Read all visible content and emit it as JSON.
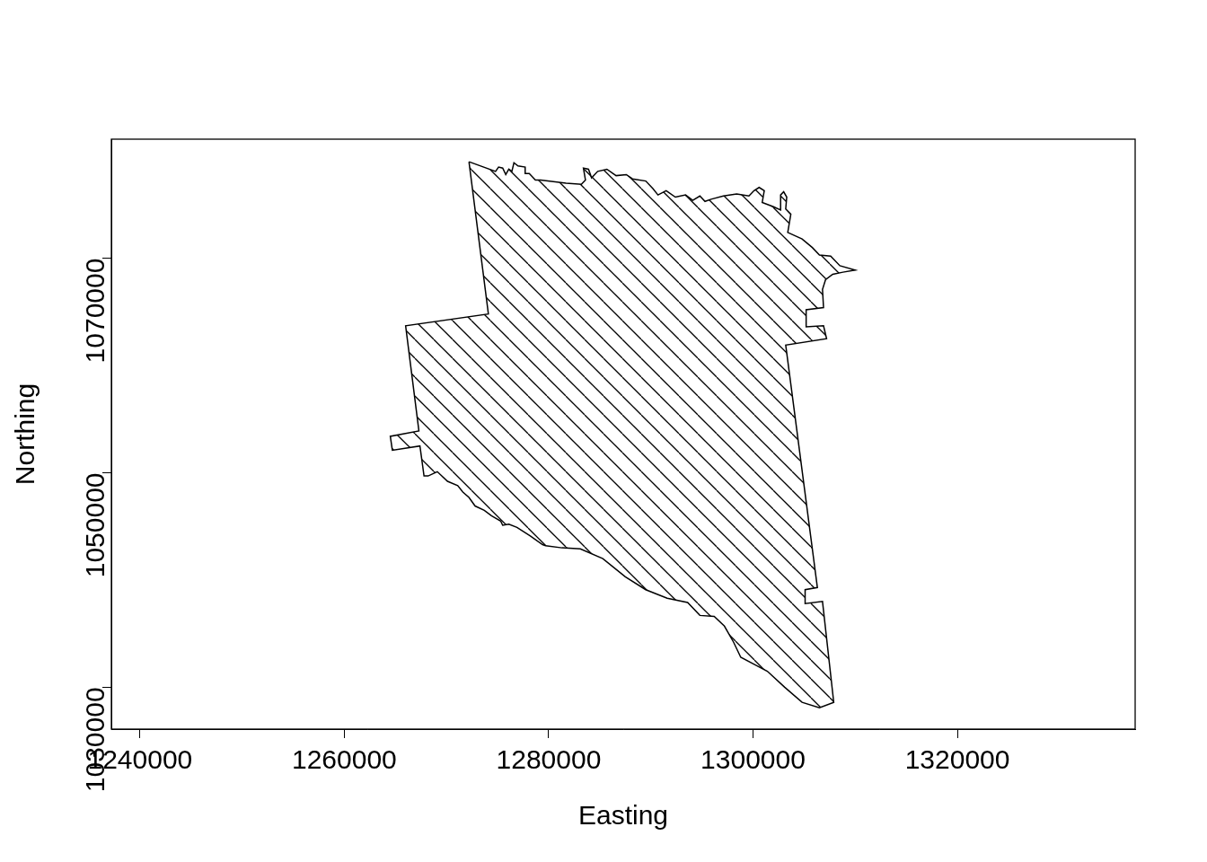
{
  "chart_data": {
    "type": "polygon",
    "x_label": "Easting",
    "y_label": "Northing",
    "color": "#000000",
    "grid": false,
    "xlim": [
      1237200,
      1337400
    ],
    "xticks": [
      1240000,
      1260000,
      1280000,
      1300000,
      1320000
    ],
    "ylim": [
      1026100,
      1081100
    ],
    "yticks": [
      1030000,
      1050000,
      1070000
    ],
    "x": [
      1272200,
      1274800,
      1275100,
      1275500,
      1275800,
      1276100,
      1276400,
      1276600,
      1277000,
      1277700,
      1277700,
      1278100,
      1278700,
      1279200,
      1281700,
      1283200,
      1283600,
      1283400,
      1283900,
      1284200,
      1284800,
      1285700,
      1286600,
      1287600,
      1288200,
      1289500,
      1290200,
      1290700,
      1291500,
      1292400,
      1293400,
      1294100,
      1294800,
      1295300,
      1295900,
      1297100,
      1298400,
      1299600,
      1300100,
      1300600,
      1301100,
      1300900,
      1302000,
      1302700,
      1302700,
      1303000,
      1303300,
      1303200,
      1303700,
      1303400,
      1304800,
      1305800,
      1306500,
      1307600,
      1308500,
      1310000,
      1308800,
      1307800,
      1307100,
      1306800,
      1306900,
      1305200,
      1305200,
      1306900,
      1307200,
      1303200,
      1306300,
      1305100,
      1305100,
      1306800,
      1307900,
      1306500,
      1304800,
      1303100,
      1301400,
      1300200,
      1298800,
      1298100,
      1297200,
      1296200,
      1294800,
      1293600,
      1291600,
      1289500,
      1287500,
      1285300,
      1283100,
      1281300,
      1279700,
      1279400,
      1278200,
      1276900,
      1276100,
      1275500,
      1275300,
      1274400,
      1273700,
      1272800,
      1272200,
      1271600,
      1271100,
      1270100,
      1269100,
      1268200,
      1267800,
      1267400,
      1264700,
      1264500,
      1267300,
      1266000,
      1274100,
      1272200
    ],
    "values": [
      1079000,
      1078100,
      1078500,
      1078400,
      1077800,
      1078300,
      1078100,
      1078900,
      1078600,
      1078500,
      1077900,
      1077900,
      1077300,
      1077300,
      1077000,
      1076900,
      1077300,
      1078400,
      1078300,
      1077500,
      1078100,
      1078300,
      1077700,
      1077800,
      1077400,
      1077200,
      1076500,
      1075900,
      1076300,
      1075700,
      1075900,
      1075400,
      1075800,
      1075300,
      1075500,
      1075800,
      1076000,
      1075800,
      1076300,
      1076600,
      1076300,
      1075200,
      1074800,
      1074500,
      1075900,
      1076200,
      1075700,
      1074600,
      1074100,
      1072400,
      1071800,
      1071000,
      1070300,
      1070200,
      1069300,
      1068900,
      1068700,
      1068500,
      1068000,
      1067100,
      1065400,
      1065200,
      1063600,
      1063700,
      1062500,
      1061900,
      1039300,
      1039100,
      1037800,
      1038000,
      1028600,
      1028100,
      1028600,
      1030000,
      1031500,
      1032100,
      1032800,
      1034200,
      1035700,
      1036600,
      1036700,
      1037900,
      1038300,
      1039100,
      1040300,
      1042000,
      1042900,
      1043000,
      1043200,
      1043300,
      1044100,
      1044900,
      1045200,
      1045100,
      1045500,
      1046000,
      1046500,
      1046900,
      1047700,
      1048200,
      1048800,
      1049200,
      1050100,
      1049700,
      1049700,
      1052500,
      1052100,
      1053400,
      1053900,
      1063700,
      1064800,
      1079000
    ]
  }
}
